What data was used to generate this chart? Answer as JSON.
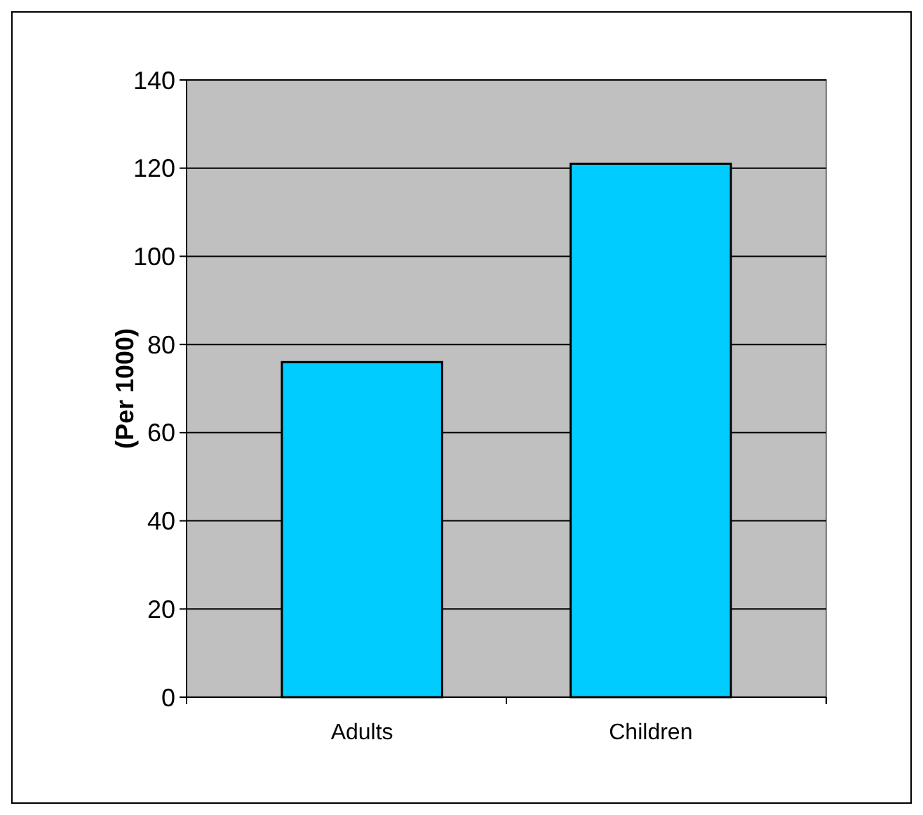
{
  "chart_data": {
    "type": "bar",
    "ylabel": "(Per 1000)",
    "categories": [
      "Adults",
      "Children"
    ],
    "values": [
      76,
      121
    ],
    "color": "#00ccff",
    "ylim": [
      0,
      140
    ],
    "yticks": [
      0,
      20,
      40,
      60,
      80,
      100,
      120,
      140
    ],
    "grid": "y"
  }
}
